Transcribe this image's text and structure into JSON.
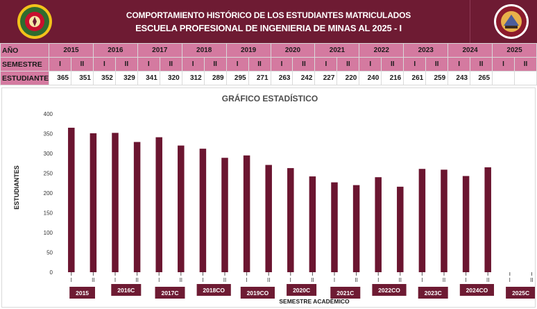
{
  "header": {
    "title_line1": "COMPORTAMIENTO HISTÓRICO DE LOS ESTUDIANTES MATRICULADOS",
    "title_line2": "ESCUELA PROFESIONAL DE INGENIERIA DE MINAS AL 2025 - I",
    "logo_left_icon": "university-seal-icon",
    "logo_right_icon": "mining-school-emblem-icon"
  },
  "table": {
    "year_label": "AÑO",
    "semester_label": "SEMESTRE",
    "students_label": "ESTUDIANTES",
    "years": [
      "2015",
      "2016",
      "2017",
      "2018",
      "2019",
      "2020",
      "2021",
      "2022",
      "2023",
      "2024",
      "2025"
    ],
    "semesters": [
      "I",
      "II",
      "I",
      "II",
      "I",
      "II",
      "I",
      "II",
      "I",
      "II",
      "I",
      "II",
      "I",
      "II",
      "I",
      "II",
      "I",
      "II",
      "I",
      "II",
      "I",
      "II"
    ],
    "students": [
      "365",
      "351",
      "352",
      "329",
      "341",
      "320",
      "312",
      "289",
      "295",
      "271",
      "263",
      "242",
      "227",
      "220",
      "240",
      "216",
      "261",
      "259",
      "243",
      "265",
      "",
      ""
    ]
  },
  "chart_data": {
    "type": "bar",
    "title": "GRÁFICO ESTADÍSTICO",
    "xlabel": "SEMESTRE ACADÉMICO",
    "ylabel": "ESTUDIANTES",
    "ylim": [
      0,
      400
    ],
    "yticks": [
      "0",
      "50",
      "100",
      "150",
      "200",
      "250",
      "300",
      "350",
      "400"
    ],
    "grid": false,
    "bar_color": "#6b1530",
    "categories": [
      "I",
      "II",
      "I",
      "II",
      "I",
      "II",
      "I",
      "II",
      "I",
      "II",
      "I",
      "II",
      "I",
      "II",
      "I",
      "II",
      "I",
      "II",
      "I",
      "II",
      "I",
      "II"
    ],
    "values": [
      365,
      351,
      352,
      329,
      341,
      320,
      312,
      289,
      295,
      271,
      263,
      242,
      227,
      220,
      240,
      216,
      261,
      259,
      243,
      265,
      null,
      null
    ],
    "group_labels": [
      "2015",
      "2016C",
      "2017C",
      "2018CO",
      "2019CO",
      "2020C",
      "2021C",
      "2022CO",
      "2023C",
      "2024CO",
      "2025C"
    ]
  }
}
